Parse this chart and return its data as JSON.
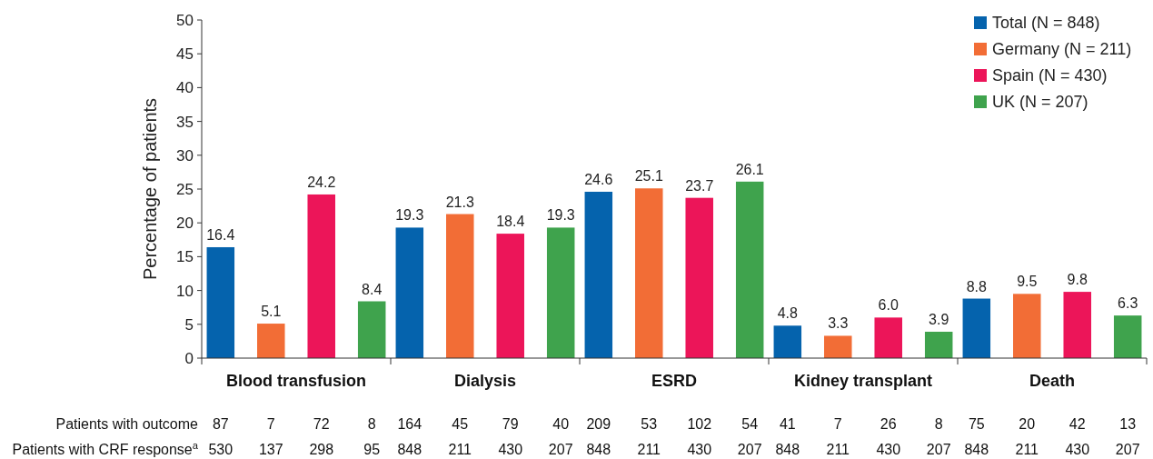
{
  "chart_data": {
    "type": "bar",
    "ylabel": "Percentage of patients",
    "categories": [
      "Blood transfusion",
      "Dialysis",
      "ESRD",
      "Kidney transplant",
      "Death"
    ],
    "series": [
      {
        "name": "Total (N = 848)",
        "color": "#0563ad",
        "values": [
          16.4,
          19.3,
          24.6,
          4.8,
          8.8
        ]
      },
      {
        "name": "Germany (N = 211)",
        "color": "#f26d36",
        "values": [
          5.1,
          21.3,
          25.1,
          3.3,
          9.5
        ]
      },
      {
        "name": "Spain (N = 430)",
        "color": "#ec1559",
        "values": [
          24.2,
          18.4,
          23.7,
          6.0,
          9.8
        ]
      },
      {
        "name": "UK (N = 207)",
        "color": "#3fa34d",
        "values": [
          8.4,
          19.3,
          26.1,
          3.9,
          6.3
        ]
      }
    ],
    "value_labels": [
      [
        "16.4",
        "19.3",
        "24.6",
        "4.8",
        "8.8"
      ],
      [
        "5.1",
        "21.3",
        "25.1",
        "3.3",
        "9.5"
      ],
      [
        "24.2",
        "18.4",
        "23.7",
        "6.0",
        "9.8"
      ],
      [
        "8.4",
        "19.3",
        "26.1",
        "3.9",
        "6.3"
      ]
    ],
    "ylim": [
      0,
      50
    ],
    "yticks": [
      0,
      5,
      10,
      15,
      20,
      25,
      30,
      35,
      40,
      45,
      50
    ],
    "legend": "top right",
    "annotations": [
      "Patients with outcome",
      "87",
      "7",
      "72",
      "8",
      "164",
      "45",
      "79",
      "40",
      "209",
      "53",
      "102",
      "54",
      "41",
      "7",
      "26",
      "8",
      "75",
      "20",
      "42",
      "13",
      "Patients with CRF response$^{a}$",
      "530",
      "137",
      "298",
      "95",
      "848",
      "211",
      "430",
      "207",
      "848",
      "211",
      "430",
      "207",
      "848",
      "211",
      "430",
      "207",
      "848",
      "211",
      "430",
      "207"
    ]
  }
}
